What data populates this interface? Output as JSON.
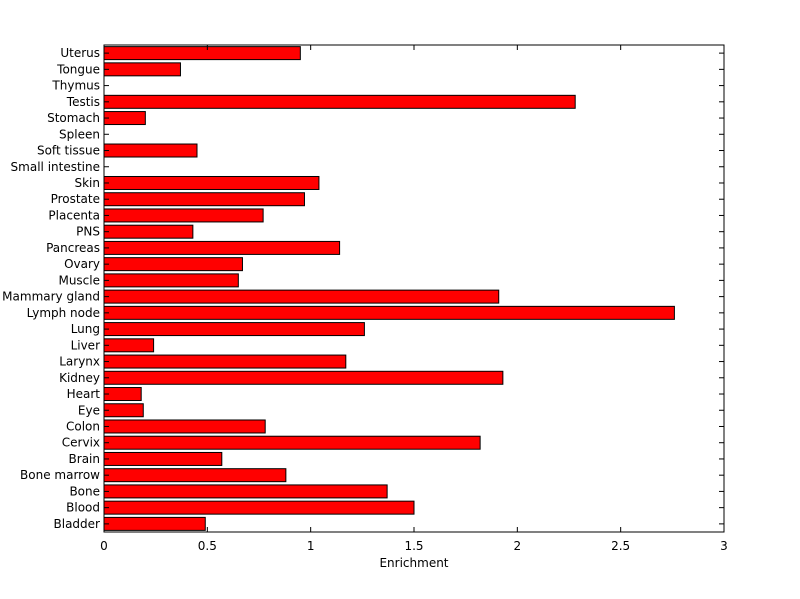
{
  "chart_data": {
    "type": "bar",
    "orientation": "horizontal",
    "title": "",
    "xlabel": "Enrichment",
    "ylabel": "",
    "xlim": [
      0,
      3
    ],
    "xticks": [
      "0",
      "0.5",
      "1",
      "1.5",
      "2",
      "2.5",
      "3"
    ],
    "grid": false,
    "bar_color": "#ff0000",
    "categories": [
      "Bladder",
      "Blood",
      "Bone",
      "Bone marrow",
      "Brain",
      "Cervix",
      "Colon",
      "Eye",
      "Heart",
      "Kidney",
      "Larynx",
      "Liver",
      "Lung",
      "Lymph node",
      "Mammary gland",
      "Muscle",
      "Ovary",
      "Pancreas",
      "PNS",
      "Placenta",
      "Prostate",
      "Skin",
      "Small intestine",
      "Soft tissue",
      "Spleen",
      "Stomach",
      "Testis",
      "Thymus",
      "Tongue",
      "Uterus"
    ],
    "values": [
      0.49,
      1.5,
      1.37,
      0.88,
      0.57,
      1.82,
      0.78,
      0.19,
      0.18,
      1.93,
      1.17,
      0.24,
      1.26,
      2.76,
      1.91,
      0.65,
      0.67,
      1.14,
      0.43,
      0.77,
      0.97,
      1.04,
      0,
      0.45,
      0,
      0.2,
      2.28,
      0,
      0.37,
      0.95
    ]
  }
}
